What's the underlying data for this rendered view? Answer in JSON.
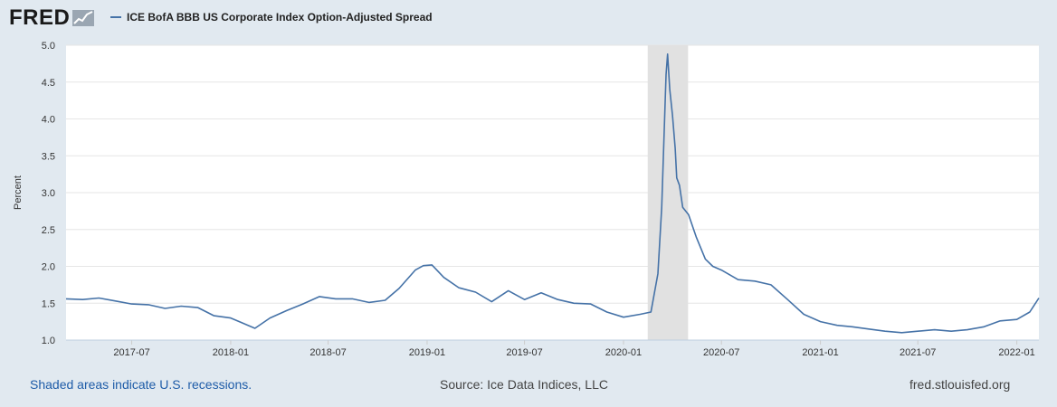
{
  "brand": {
    "logo_text": "FRED"
  },
  "colors": {
    "series": "#4572a7",
    "recession": "#e1e1e1",
    "background": "#e1e9f0",
    "link": "#1e5ca8"
  },
  "chart_data": {
    "type": "line",
    "title": "",
    "xlabel": "",
    "ylabel": "Percent",
    "ylim": [
      1.0,
      5.0
    ],
    "yticks": [
      "1.0",
      "1.5",
      "2.0",
      "2.5",
      "3.0",
      "3.5",
      "4.0",
      "4.5",
      "5.0"
    ],
    "xticks": [
      "2017-07",
      "2018-01",
      "2018-07",
      "2019-01",
      "2019-07",
      "2020-01",
      "2020-07",
      "2021-01",
      "2021-07",
      "2022-01"
    ],
    "xlim": [
      "2017-03-01",
      "2022-02-11"
    ],
    "grid": true,
    "legend_position": "top-left",
    "recessions": [
      {
        "start": "2020-02-15",
        "end": "2020-04-30"
      }
    ],
    "series": [
      {
        "name": "ICE BofA BBB US Corporate Index Option-Adjusted Spread",
        "x": [
          "2017-03-01",
          "2017-04-01",
          "2017-05-01",
          "2017-06-01",
          "2017-07-01",
          "2017-08-01",
          "2017-09-01",
          "2017-10-01",
          "2017-11-01",
          "2017-12-01",
          "2018-01-01",
          "2018-01-20",
          "2018-02-15",
          "2018-03-15",
          "2018-04-15",
          "2018-05-15",
          "2018-06-15",
          "2018-07-15",
          "2018-08-15",
          "2018-09-15",
          "2018-10-15",
          "2018-11-10",
          "2018-12-10",
          "2018-12-25",
          "2019-01-10",
          "2019-02-01",
          "2019-03-01",
          "2019-04-01",
          "2019-05-01",
          "2019-06-01",
          "2019-07-01",
          "2019-08-01",
          "2019-09-01",
          "2019-10-01",
          "2019-11-01",
          "2019-12-01",
          "2020-01-01",
          "2020-02-01",
          "2020-02-21",
          "2020-03-05",
          "2020-03-12",
          "2020-03-16",
          "2020-03-20",
          "2020-03-23",
          "2020-03-27",
          "2020-04-01",
          "2020-04-06",
          "2020-04-09",
          "2020-04-14",
          "2020-04-20",
          "2020-05-01",
          "2020-05-15",
          "2020-06-01",
          "2020-06-15",
          "2020-07-01",
          "2020-08-01",
          "2020-09-01",
          "2020-10-01",
          "2020-11-01",
          "2020-12-01",
          "2021-01-01",
          "2021-02-01",
          "2021-03-01",
          "2021-04-01",
          "2021-05-01",
          "2021-06-01",
          "2021-07-01",
          "2021-08-01",
          "2021-09-01",
          "2021-10-01",
          "2021-11-01",
          "2021-12-01",
          "2022-01-01",
          "2022-01-25",
          "2022-02-11"
        ],
        "y": [
          1.56,
          1.55,
          1.57,
          1.53,
          1.49,
          1.48,
          1.43,
          1.46,
          1.44,
          1.33,
          1.3,
          1.24,
          1.16,
          1.3,
          1.4,
          1.49,
          1.59,
          1.56,
          1.56,
          1.51,
          1.54,
          1.7,
          1.95,
          2.01,
          2.02,
          1.85,
          1.71,
          1.65,
          1.52,
          1.67,
          1.55,
          1.64,
          1.55,
          1.5,
          1.49,
          1.38,
          1.31,
          1.35,
          1.38,
          1.9,
          2.8,
          3.7,
          4.6,
          4.88,
          4.4,
          4.05,
          3.6,
          3.2,
          3.1,
          2.8,
          2.7,
          2.4,
          2.1,
          2.0,
          1.95,
          1.82,
          1.8,
          1.75,
          1.55,
          1.35,
          1.25,
          1.2,
          1.18,
          1.15,
          1.12,
          1.1,
          1.12,
          1.14,
          1.12,
          1.14,
          1.18,
          1.26,
          1.28,
          1.38,
          1.57
        ]
      }
    ]
  },
  "footer": {
    "recession_note": "Shaded areas indicate U.S. recessions.",
    "source": "Source: Ice Data Indices, LLC",
    "site": "fred.stlouisfed.org"
  }
}
